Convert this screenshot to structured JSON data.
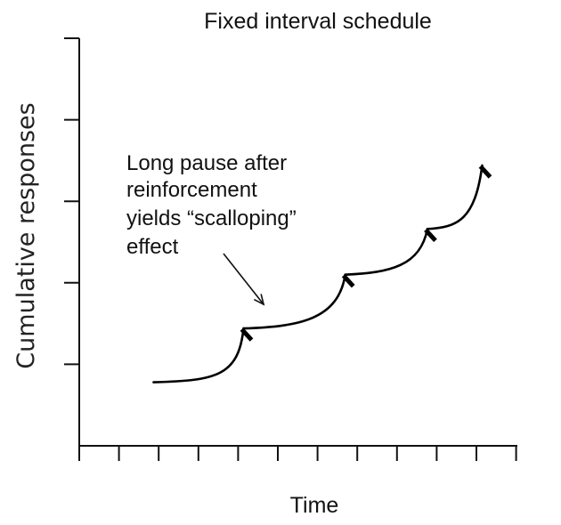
{
  "chart_data": {
    "type": "line",
    "title": "Fixed interval schedule",
    "xlabel": "Time",
    "ylabel": "Cumulative responses",
    "x_ticks": 12,
    "y_ticks": 5,
    "xlim": [
      0,
      11.2
    ],
    "ylim": [
      0,
      5
    ],
    "grid": false,
    "x_tick_labels": false,
    "y_tick_labels": false,
    "series": [
      {
        "segments": [
          {
            "x": [
              1.9,
              3.5,
              4.2
            ],
            "y": [
              0.78,
              0.8,
              1.44
            ]
          },
          {
            "x": [
              4.2,
              6.8,
              6.8
            ],
            "y": [
              1.44,
              2.1,
              2.1
            ]
          },
          {
            "x": [
              6.8,
              8.9,
              8.9
            ],
            "y": [
              2.1,
              2.66,
              2.66
            ]
          },
          {
            "x": [
              8.9,
              10.3,
              10.3
            ],
            "y": [
              2.66,
              3.44,
              3.44
            ]
          }
        ],
        "reinforcements": [
          {
            "x": 4.2,
            "y": 1.44
          },
          {
            "x": 6.8,
            "y": 2.1
          },
          {
            "x": 8.9,
            "y": 2.66
          },
          {
            "x": 10.3,
            "y": 3.44
          }
        ]
      }
    ],
    "annotation": {
      "lines": [
        "Long pause after",
        "reinforcement",
        "yields “scalloping”",
        "effect"
      ],
      "points_to": {
        "x": 4.6,
        "y": 1.68
      }
    }
  }
}
